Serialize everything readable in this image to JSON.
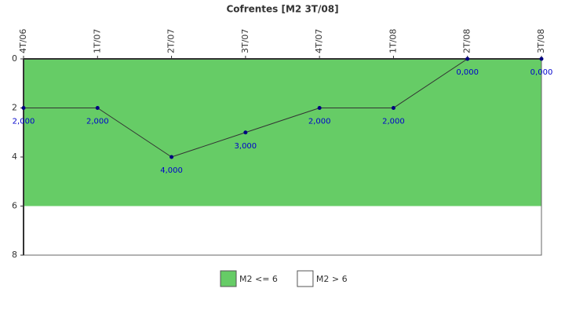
{
  "chart_data": {
    "type": "line",
    "title": "Cofrentes [M2 3T/08]",
    "categories": [
      "4T/06",
      "1T/07",
      "2T/07",
      "3T/07",
      "4T/07",
      "1T/08",
      "2T/08",
      "3T/08"
    ],
    "series": [
      {
        "name": "M2",
        "color": "#333333",
        "marker_color": "#000080",
        "values": [
          2,
          2,
          4,
          3,
          2,
          2,
          0,
          0
        ],
        "value_labels": [
          "2,000",
          "2,000",
          "4,000",
          "3,000",
          "2,000",
          "2,000",
          "0,000",
          "0,000"
        ]
      }
    ],
    "bands": [
      {
        "name": "M2 <= 6",
        "color": "#66cc66",
        "from": 0,
        "to": 6
      },
      {
        "name": "M2 > 6",
        "color": "#ffffff",
        "from": 6,
        "to": 8
      }
    ],
    "ylim": [
      0,
      8
    ],
    "y_inverted": true,
    "yticks": [
      0,
      2,
      4,
      6,
      8
    ],
    "legend": "bottom"
  }
}
